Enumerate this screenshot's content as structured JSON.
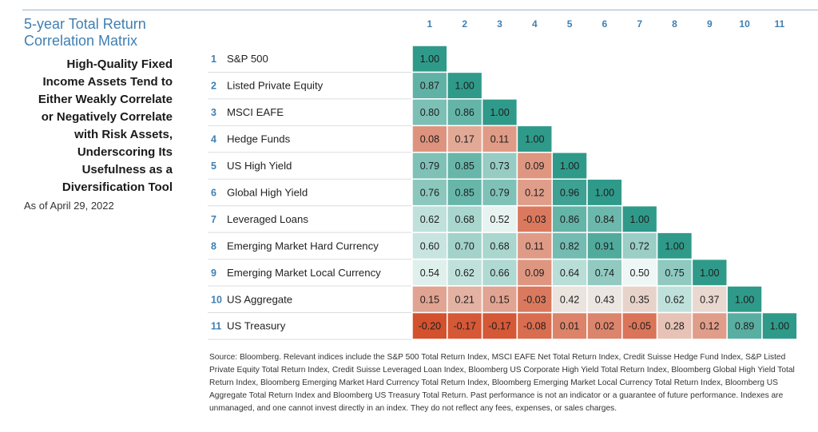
{
  "title_line1": "5-year Total Return",
  "title_line2": "Correlation Matrix",
  "headline": "High-Quality Fixed Income Assets Tend to Either Weakly Correlate or Negatively Correlate with Risk Assets, Underscoring Its Usefulness as a Diversification Tool",
  "as_of": "As of April 29, 2022",
  "footnote": "Source: Bloomberg. Relevant indices include the S&P 500 Total Return Index, MSCI EAFE Net Total Return Index, Credit Suisse Hedge Fund Index, S&P Listed Private Equity Total Return Index, Credit Suisse Leveraged Loan Index, Bloomberg US Corporate High Yield Total Return Index, Bloomberg Global High Yield Total Return Index, Bloomberg Emerging Market Hard Currency Total Return Index, Bloomberg Emerging Market Local Currency Total Return Index, Bloomberg US Aggregate Total Return Index and Bloomberg US Treasury Total Return. Past performance is not an indicator or a guarantee of future performance. Indexes are unmanaged, and one cannot invest directly in an index. They do not reflect any fees, expenses, or sales charges.",
  "colors": {
    "title": "#3f7fb2",
    "number": "#3f7fb2",
    "scale_low": "#d4512e",
    "scale_mid": "#eef7f5",
    "scale_high": "#2f9a8a"
  },
  "chart_data": {
    "type": "heatmap",
    "columns": [
      "1",
      "2",
      "3",
      "4",
      "5",
      "6",
      "7",
      "8",
      "9",
      "10",
      "11"
    ],
    "rows": [
      {
        "num": "1",
        "label": "S&P 500",
        "values": [
          "1.00"
        ]
      },
      {
        "num": "2",
        "label": "Listed Private Equity",
        "values": [
          "0.87",
          "1.00"
        ]
      },
      {
        "num": "3",
        "label": "MSCI EAFE",
        "values": [
          "0.80",
          "0.86",
          "1.00"
        ]
      },
      {
        "num": "4",
        "label": "Hedge Funds",
        "values": [
          "0.08",
          "0.17",
          "0.11",
          "1.00"
        ]
      },
      {
        "num": "5",
        "label": "US High Yield",
        "values": [
          "0.79",
          "0.85",
          "0.73",
          "0.09",
          "1.00"
        ]
      },
      {
        "num": "6",
        "label": "Global High Yield",
        "values": [
          "0.76",
          "0.85",
          "0.79",
          "0.12",
          "0.96",
          "1.00"
        ]
      },
      {
        "num": "7",
        "label": "Leveraged Loans",
        "values": [
          "0.62",
          "0.68",
          "0.52",
          "-0.03",
          "0.86",
          "0.84",
          "1.00"
        ]
      },
      {
        "num": "8",
        "label": "Emerging Market Hard Currency",
        "values": [
          "0.60",
          "0.70",
          "0.68",
          "0.11",
          "0.82",
          "0.91",
          "0.72",
          "1.00"
        ]
      },
      {
        "num": "9",
        "label": "Emerging Market Local Currency",
        "values": [
          "0.54",
          "0.62",
          "0.66",
          "0.09",
          "0.64",
          "0.74",
          "0.50",
          "0.75",
          "1.00"
        ]
      },
      {
        "num": "10",
        "label": "US Aggregate",
        "values": [
          "0.15",
          "0.21",
          "0.15",
          "-0.03",
          "0.42",
          "0.43",
          "0.35",
          "0.62",
          "0.37",
          "1.00"
        ]
      },
      {
        "num": "11",
        "label": "US Treasury",
        "values": [
          "-0.20",
          "-0.17",
          "-0.17",
          "-0.08",
          "0.01",
          "0.02",
          "-0.05",
          "0.28",
          "0.12",
          "0.89",
          "1.00"
        ]
      }
    ]
  }
}
